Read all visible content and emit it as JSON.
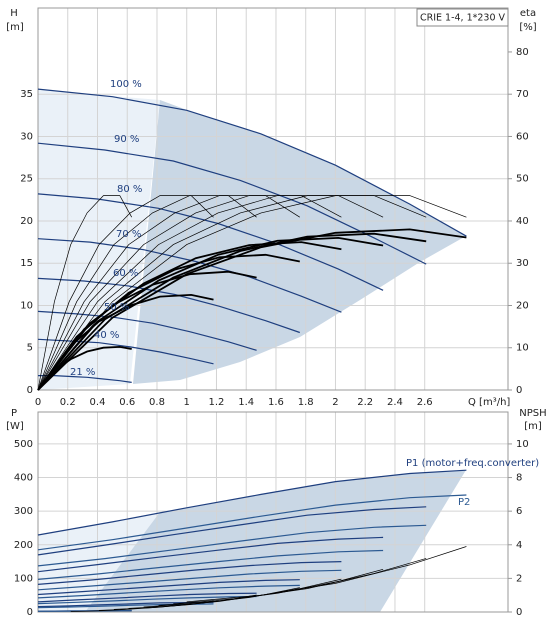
{
  "chart_data": [
    {
      "type": "line",
      "title": "CRIE 1-4, 1*230 V",
      "x_label": "Q [m³/h]",
      "y_label": "H",
      "y_unit": "[m]",
      "y2_label": "eta",
      "y2_unit": "[%]",
      "xlim": [
        0,
        3.16
      ],
      "xticks": [
        0,
        0.2,
        0.4,
        0.6,
        0.8,
        1,
        1.2,
        1.4,
        1.6,
        1.8,
        2,
        2.2,
        2.4,
        2.6
      ],
      "ylim": [
        0,
        45.2
      ],
      "yticks": [
        0,
        5,
        10,
        15,
        20,
        25,
        30,
        35
      ],
      "y2lim": [
        0,
        90.4
      ],
      "y2ticks": [
        0,
        10,
        20,
        30,
        40,
        50,
        60,
        70,
        80
      ],
      "grid": true,
      "series": [
        {
          "name": "100 %",
          "color": "#1f3f7f",
          "x": [
            0,
            0.5,
            1,
            1.5,
            2,
            2.5,
            2.88
          ],
          "values": [
            35.6,
            34.7,
            33.1,
            30.3,
            26.6,
            22.0,
            18.2
          ]
        },
        {
          "name": "90 %",
          "color": "#1f3f7f",
          "x": [
            0,
            0.45,
            0.91,
            1.36,
            1.81,
            2.26,
            2.61
          ],
          "values": [
            29.2,
            28.4,
            27.1,
            24.8,
            21.8,
            18.0,
            14.9
          ]
        },
        {
          "name": "80 %",
          "color": "#1f3f7f",
          "x": [
            0,
            0.4,
            0.81,
            1.21,
            1.61,
            2.02,
            2.32
          ],
          "values": [
            23.2,
            22.6,
            21.5,
            19.7,
            17.3,
            14.3,
            11.8
          ]
        },
        {
          "name": "70 %",
          "color": "#1f3f7f",
          "x": [
            0,
            0.35,
            0.71,
            1.06,
            1.42,
            1.77,
            2.04
          ],
          "values": [
            17.9,
            17.5,
            16.6,
            15.2,
            13.4,
            11.1,
            9.2
          ]
        },
        {
          "name": "60 %",
          "color": "#1f3f7f",
          "x": [
            0,
            0.31,
            0.61,
            0.92,
            1.22,
            1.53,
            1.76
          ],
          "values": [
            13.2,
            12.9,
            12.3,
            11.3,
            9.9,
            8.2,
            6.8
          ]
        },
        {
          "name": "50 %",
          "color": "#1f3f7f",
          "x": [
            0,
            0.26,
            0.51,
            0.77,
            1.02,
            1.28,
            1.47
          ],
          "values": [
            9.3,
            9.0,
            8.6,
            7.9,
            6.9,
            5.7,
            4.7
          ]
        },
        {
          "name": "40 %",
          "color": "#1f3f7f",
          "x": [
            0,
            0.21,
            0.41,
            0.62,
            0.82,
            1.03,
            1.18
          ],
          "values": [
            6.0,
            5.8,
            5.6,
            5.1,
            4.5,
            3.7,
            3.1
          ]
        },
        {
          "name": "21 %",
          "color": "#1f3f7f",
          "x": [
            0,
            0.11,
            0.22,
            0.33,
            0.44,
            0.55,
            0.63
          ],
          "values": [
            1.7,
            1.7,
            1.6,
            1.5,
            1.3,
            1.1,
            0.9
          ]
        },
        {
          "color": "#000000",
          "axis": "y2",
          "x": [
            0,
            0.5,
            1,
            1.5,
            2,
            2.5,
            2.88
          ],
          "values": [
            0,
            20.9,
            34.4,
            41.9,
            46,
            46,
            40.9
          ]
        },
        {
          "color": "#000000",
          "axis": "y2",
          "x": [
            0,
            0.45,
            0.91,
            1.36,
            1.81,
            2.26,
            2.61
          ],
          "values": [
            0,
            20.9,
            34.4,
            41.9,
            46,
            46,
            40.9
          ]
        },
        {
          "color": "#000000",
          "axis": "y2",
          "x": [
            0,
            0.4,
            0.81,
            1.21,
            1.61,
            2.02,
            2.32
          ],
          "values": [
            0,
            20.9,
            34.4,
            41.9,
            46,
            46,
            40.9
          ]
        },
        {
          "color": "#000000",
          "axis": "y2",
          "x": [
            0,
            0.35,
            0.71,
            1.06,
            1.42,
            1.77,
            2.04
          ],
          "values": [
            0,
            20.9,
            34.4,
            41.9,
            46,
            46,
            40.9
          ]
        },
        {
          "color": "#000000",
          "axis": "y2",
          "x": [
            0,
            0.31,
            0.61,
            0.92,
            1.22,
            1.53,
            1.76
          ],
          "values": [
            0,
            20.9,
            34.4,
            41.9,
            46,
            46,
            40.9
          ]
        },
        {
          "color": "#000000",
          "axis": "y2",
          "x": [
            0,
            0.26,
            0.51,
            0.77,
            1.02,
            1.28,
            1.47
          ],
          "values": [
            0,
            20.9,
            34.4,
            41.9,
            46,
            46,
            40.9
          ]
        },
        {
          "color": "#000000",
          "axis": "y2",
          "x": [
            0,
            0.21,
            0.41,
            0.62,
            0.82,
            1.03,
            1.18
          ],
          "values": [
            0,
            20.9,
            34.4,
            41.9,
            46,
            46,
            40.9
          ]
        },
        {
          "color": "#000000",
          "axis": "y2",
          "x": [
            0,
            0.11,
            0.22,
            0.33,
            0.44,
            0.55,
            0.63
          ],
          "values": [
            0,
            20.9,
            34.4,
            41.9,
            46,
            46,
            40.9
          ]
        },
        {
          "color": "#000000",
          "axis": "y2",
          "line_style": "thick",
          "x": [
            0,
            0.5,
            1,
            1.5,
            2,
            2.5,
            2.88
          ],
          "values": [
            0,
            17.1,
            27.4,
            33.8,
            37.2,
            38.0,
            36.1
          ]
        },
        {
          "color": "#000000",
          "axis": "y2",
          "line_style": "thick",
          "x": [
            0,
            0.45,
            0.91,
            1.36,
            1.81,
            2.26,
            2.61
          ],
          "values": [
            0,
            16.7,
            26.6,
            32.9,
            36.3,
            37.0,
            35.2
          ]
        },
        {
          "color": "#000000",
          "axis": "y2",
          "line_style": "thick",
          "x": [
            0,
            0.4,
            0.81,
            1.21,
            1.61,
            2.02,
            2.32
          ],
          "values": [
            0,
            16.2,
            25.9,
            32.0,
            35.3,
            36.0,
            34.2
          ]
        },
        {
          "color": "#000000",
          "axis": "y2",
          "line_style": "thick",
          "x": [
            0,
            0.35,
            0.71,
            1.06,
            1.42,
            1.77,
            2.04
          ],
          "values": [
            0,
            15.8,
            25.2,
            31.2,
            34.3,
            35.0,
            33.3
          ]
        },
        {
          "color": "#000000",
          "axis": "y2",
          "line_style": "thick",
          "x": [
            0,
            0.31,
            0.61,
            0.92,
            1.22,
            1.53,
            1.76
          ],
          "values": [
            0,
            14.4,
            23.0,
            28.5,
            31.4,
            32.0,
            30.4
          ]
        },
        {
          "color": "#000000",
          "axis": "y2",
          "line_style": "thick",
          "x": [
            0,
            0.26,
            0.51,
            0.77,
            1.02,
            1.28,
            1.47
          ],
          "values": [
            0,
            12.6,
            20.2,
            24.9,
            27.4,
            28.0,
            26.6
          ]
        },
        {
          "color": "#000000",
          "axis": "y2",
          "line_style": "thick",
          "x": [
            0,
            0.21,
            0.41,
            0.62,
            0.82,
            1.03,
            1.18
          ],
          "values": [
            0,
            10.1,
            16.2,
            20.0,
            22.1,
            22.5,
            21.4
          ]
        },
        {
          "color": "#000000",
          "axis": "y2",
          "line_style": "thick",
          "x": [
            0,
            0.11,
            0.22,
            0.33,
            0.44,
            0.55,
            0.63
          ],
          "values": [
            0,
            4.6,
            7.3,
            9.1,
            10.0,
            10.2,
            9.7
          ]
        }
      ]
    },
    {
      "type": "line",
      "y_label": "P",
      "y_unit": "[W]",
      "y2_label": "NPSH",
      "y2_unit": "[m]",
      "xlim": [
        0,
        3.16
      ],
      "xticks": [
        0,
        0.2,
        0.4,
        0.6,
        0.8,
        1,
        1.2,
        1.4,
        1.6,
        1.8,
        2,
        2.2,
        2.4,
        2.6
      ],
      "ylim": [
        0,
        595
      ],
      "yticks": [
        0,
        100,
        200,
        300,
        400,
        500
      ],
      "y2lim": [
        0,
        11.9
      ],
      "y2ticks": [
        0,
        2,
        4,
        6,
        8,
        10
      ],
      "grid": true,
      "series": [
        {
          "name": "P1 (motor+freq.converter)",
          "color": "#1f3f7f",
          "x": [
            0,
            0.5,
            1,
            1.5,
            2,
            2.5,
            2.88
          ],
          "values": [
            229,
            268,
            310,
            350,
            388,
            412,
            422
          ]
        },
        {
          "color": "#1f3f7f",
          "x": [
            0,
            0.45,
            0.91,
            1.36,
            1.81,
            2.26,
            2.61
          ],
          "values": [
            170,
            199,
            230,
            259,
            288,
            305,
            313
          ]
        },
        {
          "color": "#1f3f7f",
          "x": [
            0,
            0.4,
            0.81,
            1.21,
            1.61,
            2.02,
            2.32
          ],
          "values": [
            120,
            141,
            163,
            184,
            204,
            217,
            222
          ]
        },
        {
          "color": "#1f3f7f",
          "x": [
            0,
            0.35,
            0.71,
            1.06,
            1.42,
            1.77,
            2.04
          ],
          "values": [
            82,
            95,
            110,
            125,
            138,
            147,
            150
          ]
        },
        {
          "color": "#1f3f7f",
          "x": [
            0,
            0.31,
            0.61,
            0.92,
            1.22,
            1.53,
            1.76
          ],
          "values": [
            52,
            61,
            70,
            79,
            88,
            94,
            96
          ]
        },
        {
          "color": "#1f3f7f",
          "x": [
            0,
            0.26,
            0.51,
            0.77,
            1.02,
            1.28,
            1.47
          ],
          "values": [
            30,
            36,
            41,
            47,
            52,
            55,
            56
          ]
        },
        {
          "color": "#1f3f7f",
          "x": [
            0,
            0.21,
            0.41,
            0.62,
            0.82,
            1.03,
            1.18
          ],
          "values": [
            16,
            18,
            21,
            24,
            27,
            28,
            29
          ]
        },
        {
          "color": "#1f3f7f",
          "x": [
            0,
            0.11,
            0.22,
            0.33,
            0.44,
            0.55,
            0.63
          ],
          "values": [
            2.4,
            2.8,
            3.3,
            3.7,
            4.1,
            4.4,
            4.5
          ]
        },
        {
          "name": "P2",
          "color": "#2c5a92",
          "x": [
            0,
            0.5,
            1,
            1.5,
            2,
            2.5,
            2.88
          ],
          "values": [
            185,
            215,
            250,
            285,
            318,
            340,
            348
          ]
        },
        {
          "color": "#2c5a92",
          "x": [
            0,
            0.45,
            0.91,
            1.36,
            1.81,
            2.26,
            2.61
          ],
          "values": [
            137,
            159,
            185,
            211,
            236,
            252,
            258
          ]
        },
        {
          "color": "#2c5a92",
          "x": [
            0,
            0.4,
            0.81,
            1.21,
            1.61,
            2.02,
            2.32
          ],
          "values": [
            97,
            113,
            132,
            150,
            167,
            179,
            183
          ]
        },
        {
          "color": "#2c5a92",
          "x": [
            0,
            0.35,
            0.71,
            1.06,
            1.42,
            1.77,
            2.04
          ],
          "values": [
            66,
            77,
            89,
            101,
            113,
            121,
            124
          ]
        },
        {
          "color": "#2c5a92",
          "x": [
            0,
            0.31,
            0.61,
            0.92,
            1.22,
            1.53,
            1.76
          ],
          "values": [
            42,
            49,
            57,
            65,
            72,
            77,
            79
          ]
        },
        {
          "color": "#2c5a92",
          "x": [
            0,
            0.26,
            0.51,
            0.77,
            1.02,
            1.28,
            1.47
          ],
          "values": [
            25,
            29,
            33,
            38,
            42,
            45,
            46
          ]
        },
        {
          "color": "#2c5a92",
          "x": [
            0,
            0.21,
            0.41,
            0.62,
            0.82,
            1.03,
            1.18
          ],
          "values": [
            13,
            15,
            17,
            20,
            22,
            23,
            24
          ]
        },
        {
          "color": "#2c5a92",
          "x": [
            0,
            0.11,
            0.22,
            0.33,
            0.44,
            0.55,
            0.63
          ],
          "values": [
            2.0,
            2.3,
            2.7,
            3.0,
            3.4,
            3.6,
            3.7
          ]
        },
        {
          "color": "#000000",
          "axis": "y2",
          "x": [
            1,
            1.5,
            2,
            2.5,
            2.88
          ],
          "values": [
            0.6,
            1.0,
            1.7,
            2.8,
            3.9
          ]
        },
        {
          "color": "#000000",
          "axis": "y2",
          "x": [
            0.91,
            1.36,
            1.81,
            2.26,
            2.61
          ],
          "values": [
            0.49,
            0.82,
            1.39,
            2.29,
            3.19
          ]
        },
        {
          "color": "#000000",
          "axis": "y2",
          "x": [
            0.81,
            1.21,
            1.61,
            2.02,
            2.32
          ],
          "values": [
            0.39,
            0.65,
            1.11,
            1.82,
            2.54
          ]
        },
        {
          "color": "#000000",
          "axis": "y2",
          "x": [
            0.71,
            1.06,
            1.42,
            1.77,
            2.04
          ],
          "values": [
            0.3,
            0.5,
            0.86,
            1.41,
            1.96
          ]
        },
        {
          "color": "#000000",
          "axis": "y2",
          "x": [
            0.61,
            0.92,
            1.22,
            1.53,
            1.76
          ],
          "values": [
            0.22,
            0.37,
            0.63,
            1.04,
            1.45
          ]
        },
        {
          "color": "#000000",
          "axis": "y2",
          "x": [
            0.51,
            0.77,
            1.02,
            1.28,
            1.47
          ],
          "values": [
            0.16,
            0.26,
            0.44,
            0.73,
            1.01
          ]
        },
        {
          "color": "#000000",
          "axis": "y2",
          "x": [
            0.41,
            0.62,
            0.82,
            1.03,
            1.18
          ],
          "values": [
            0.1,
            0.17,
            0.29,
            0.47,
            0.66
          ]
        },
        {
          "color": "#000000",
          "axis": "y2",
          "x": [
            0.22,
            0.33,
            0.44,
            0.55,
            0.63
          ],
          "values": [
            0.03,
            0.05,
            0.08,
            0.13,
            0.19
          ]
        }
      ]
    }
  ]
}
